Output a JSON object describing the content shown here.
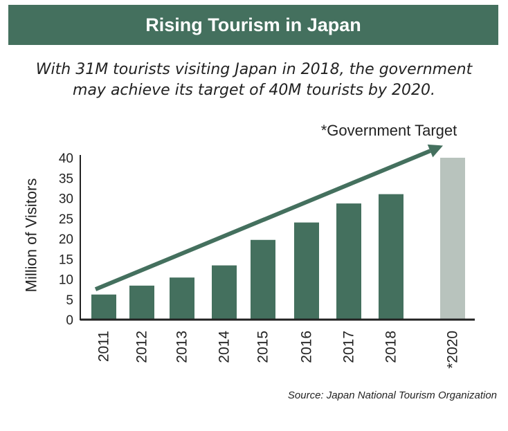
{
  "header": {
    "title": "Rising Tourism in Japan",
    "subtitle_line1": "With 31M tourists visiting Japan in 2018, the government",
    "subtitle_line2": "may achieve its target of 40M tourists by 2020."
  },
  "source": "Source: Japan National Tourism Organization",
  "chart_data": {
    "type": "bar",
    "ylabel": "Million of  Visitors",
    "ylim": [
      0,
      40
    ],
    "yticks": [
      0,
      5,
      10,
      15,
      20,
      25,
      30,
      35,
      40
    ],
    "categories": [
      "2011",
      "2012",
      "2013",
      "2014",
      "2015",
      "2016",
      "2017",
      "2018",
      "*2020"
    ],
    "values": [
      6.2,
      8.4,
      10.4,
      13.4,
      19.7,
      24,
      28.7,
      31,
      40
    ],
    "colors": {
      "actual": "#44705e",
      "target": "#b8c3bd",
      "axis": "#222222"
    },
    "annotation": "*Government Target",
    "trend_arrow": {
      "from_category": "2011",
      "from_value": 7.5,
      "to_category": "*2020",
      "to_value": 43
    }
  }
}
